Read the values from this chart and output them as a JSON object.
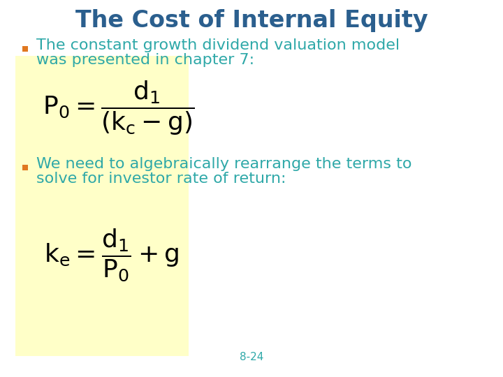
{
  "title": "The Cost of Internal Equity",
  "title_color": "#2B5F8E",
  "title_fontsize": 24,
  "bullet_color": "#E07820",
  "text_color": "#2EA8A8",
  "background_color": "#FFFFFF",
  "highlight_color": "#FFFFC8",
  "bullet1_line1": "The constant growth dividend valuation model",
  "bullet1_line2": "was presented in chapter 7:",
  "bullet2_line1": "We need to algebraically rearrange the terms to",
  "bullet2_line2": "solve for investor rate of return:",
  "footer": "8-24",
  "footer_color": "#2EA8A8",
  "text_fontsize": 16,
  "formula_fontsize": 20
}
